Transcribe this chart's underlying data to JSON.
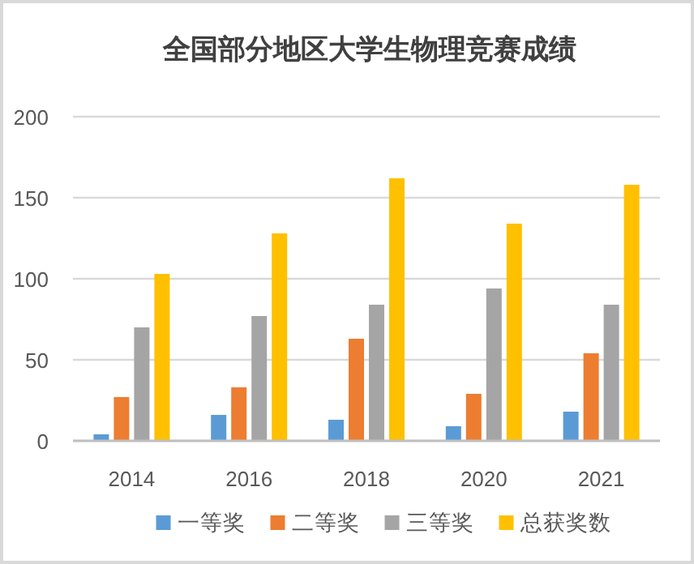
{
  "chart_data": {
    "type": "bar",
    "title": "全国部分地区大学生物理竞赛成绩",
    "categories": [
      "2014",
      "2016",
      "2018",
      "2020",
      "2021"
    ],
    "series": [
      {
        "name": "一等奖",
        "color": "#5b9bd5",
        "values": [
          4,
          16,
          13,
          9,
          18
        ]
      },
      {
        "name": "二等奖",
        "color": "#ed7d31",
        "values": [
          27,
          33,
          63,
          29,
          54
        ]
      },
      {
        "name": "三等奖",
        "color": "#a5a5a5",
        "values": [
          70,
          77,
          84,
          94,
          84
        ]
      },
      {
        "name": "总获奖数",
        "color": "#ffc000",
        "values": [
          103,
          128,
          162,
          134,
          158
        ]
      }
    ],
    "ylim": [
      0,
      200
    ],
    "yticks": [
      0,
      50,
      100,
      150,
      200
    ],
    "grid": "y",
    "legend": "bottom"
  }
}
